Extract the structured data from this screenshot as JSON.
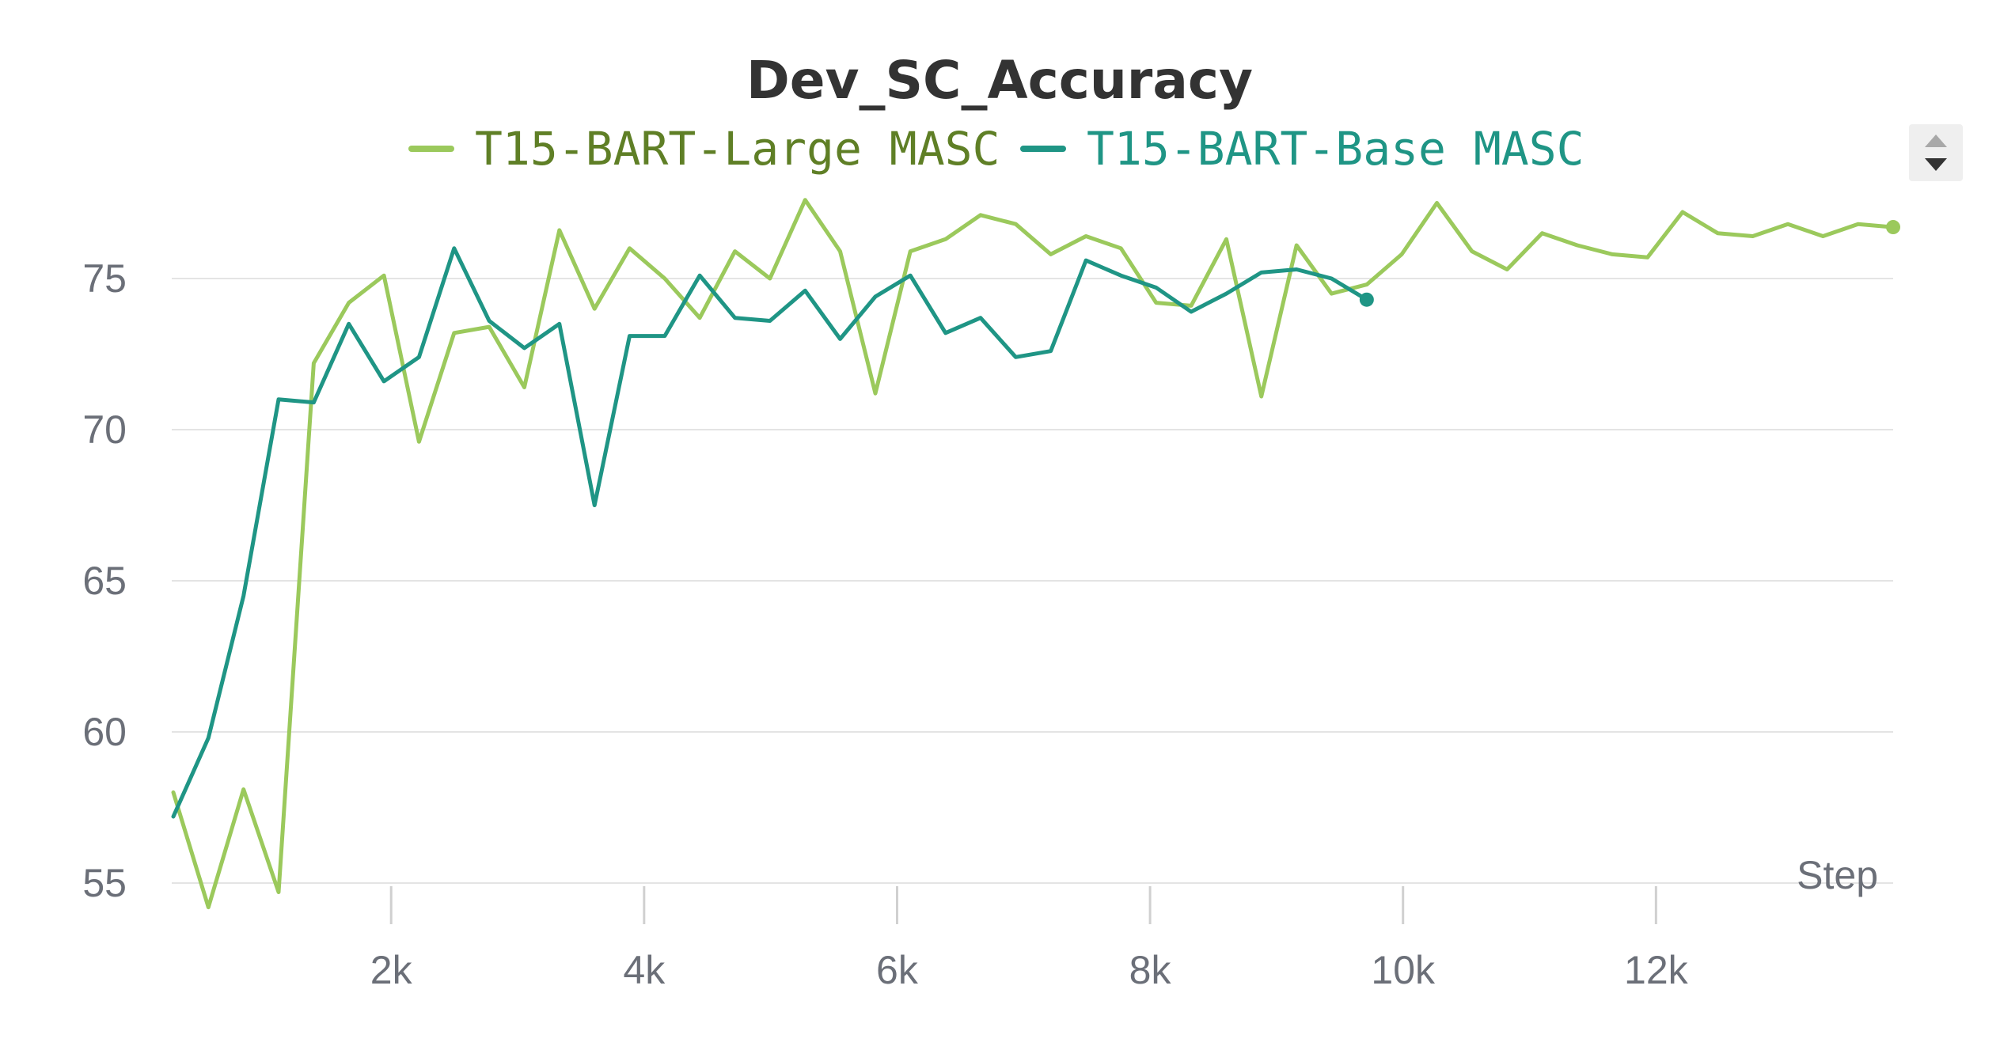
{
  "chart_data": {
    "type": "line",
    "title": "Dev_SC_Accuracy",
    "xlabel": "Step",
    "ylabel": "",
    "xlim": [
      0,
      14000
    ],
    "ylim": [
      53,
      77.5
    ],
    "x_ticks": [
      2000,
      4000,
      6000,
      8000,
      10000,
      12000
    ],
    "x_tick_labels": [
      "2k",
      "4k",
      "6k",
      "8k",
      "10k",
      "12k"
    ],
    "y_ticks": [
      55,
      60,
      65,
      70,
      75
    ],
    "y_tick_labels": [
      "55",
      "60",
      "65",
      "70",
      "75"
    ],
    "grid": true,
    "legend_position": "top-center",
    "series": [
      {
        "name": "T15-BART-Large MASC",
        "color": "#9bc95c",
        "legend_text_color": "#5f7f26",
        "x": [
          278,
          555,
          833,
          1110,
          1388,
          1665,
          1943,
          2220,
          2498,
          2775,
          3053,
          3330,
          3608,
          3885,
          4163,
          4440,
          4718,
          4995,
          5273,
          5550,
          5828,
          6105,
          6383,
          6660,
          6938,
          7215,
          7493,
          7770,
          8048,
          8325,
          8603,
          8880,
          9158,
          9435,
          9713,
          9990,
          10268,
          10545,
          10823,
          11100,
          11378,
          11655,
          11933,
          12210,
          12488,
          12765,
          13043,
          13320,
          13598,
          13875
        ],
        "y": [
          58.0,
          54.2,
          58.1,
          54.7,
          72.2,
          74.2,
          75.1,
          69.6,
          73.2,
          73.4,
          71.4,
          76.6,
          74.0,
          76.0,
          75.0,
          73.7,
          75.9,
          75.0,
          77.6,
          75.9,
          71.2,
          75.9,
          76.3,
          77.1,
          76.8,
          75.8,
          76.4,
          76.0,
          74.2,
          74.1,
          76.3,
          71.1,
          76.1,
          74.5,
          74.8,
          75.8,
          77.5,
          75.9,
          75.3,
          76.5,
          76.1,
          75.8,
          75.7,
          77.2,
          76.5,
          76.4,
          76.8,
          76.4,
          76.8,
          76.7
        ]
      },
      {
        "name": "T15-BART-Base MASC",
        "color": "#1f9585",
        "legend_text_color": "#1f9585",
        "x": [
          278,
          555,
          833,
          1110,
          1388,
          1665,
          1943,
          2220,
          2498,
          2775,
          3053,
          3330,
          3608,
          3885,
          4163,
          4440,
          4718,
          4995,
          5273,
          5550,
          5828,
          6105,
          6383,
          6660,
          6938,
          7215,
          7493,
          7770,
          8048,
          8325,
          8603,
          8880,
          9158,
          9435,
          9713
        ],
        "y": [
          57.2,
          59.8,
          64.5,
          71.0,
          70.9,
          73.5,
          71.6,
          72.4,
          76.0,
          73.6,
          72.7,
          73.5,
          67.5,
          73.1,
          73.1,
          75.1,
          73.7,
          73.6,
          74.6,
          73.0,
          74.4,
          75.1,
          73.2,
          73.7,
          72.4,
          72.6,
          75.6,
          75.1,
          74.7,
          73.9,
          74.5,
          75.2,
          75.3,
          75.0,
          74.3
        ]
      }
    ]
  },
  "controls": {
    "scroll_up_icon": "triangle-up",
    "scroll_down_icon": "triangle-down"
  }
}
